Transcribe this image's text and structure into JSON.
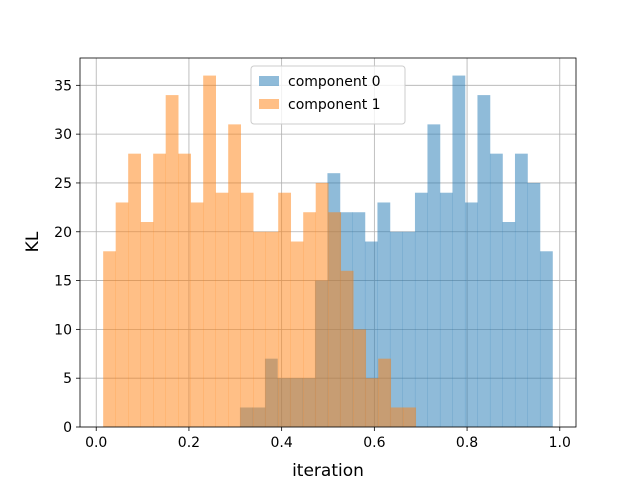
{
  "chart_data": {
    "type": "bar",
    "subtype": "histogram",
    "xlabel": "iteration",
    "ylabel": "KL",
    "xlim": [
      -0.035,
      1.035
    ],
    "ylim": [
      0,
      37.8
    ],
    "xticks": [
      0.0,
      0.2,
      0.4,
      0.6,
      0.8,
      1.0
    ],
    "xtick_labels": [
      "0.0",
      "0.2",
      "0.4",
      "0.6",
      "0.8",
      "1.0"
    ],
    "yticks": [
      0,
      5,
      10,
      15,
      20,
      25,
      30,
      35
    ],
    "ytick_labels": [
      "0",
      "5",
      "10",
      "15",
      "20",
      "25",
      "30",
      "35"
    ],
    "grid": true,
    "legend_position": "top-center",
    "series": [
      {
        "name": "component 0",
        "color": "#1f77b4",
        "alpha": 0.5,
        "bin_start": 0.31,
        "bin_width": 0.02697,
        "values": [
          2,
          2,
          7,
          5,
          5,
          5,
          15,
          26,
          22,
          22,
          19,
          23,
          20,
          20,
          24,
          31,
          24,
          36,
          23,
          34,
          28,
          21,
          28,
          25,
          18
        ]
      },
      {
        "name": "component 1",
        "color": "#ff7f0e",
        "alpha": 0.5,
        "bin_start": 0.015,
        "bin_width": 0.02697,
        "values": [
          18,
          23,
          28,
          21,
          28,
          34,
          28,
          23,
          36,
          24,
          31,
          24,
          20,
          20,
          24,
          19,
          22,
          25,
          22,
          16,
          10,
          5,
          7,
          2,
          2
        ]
      }
    ]
  }
}
